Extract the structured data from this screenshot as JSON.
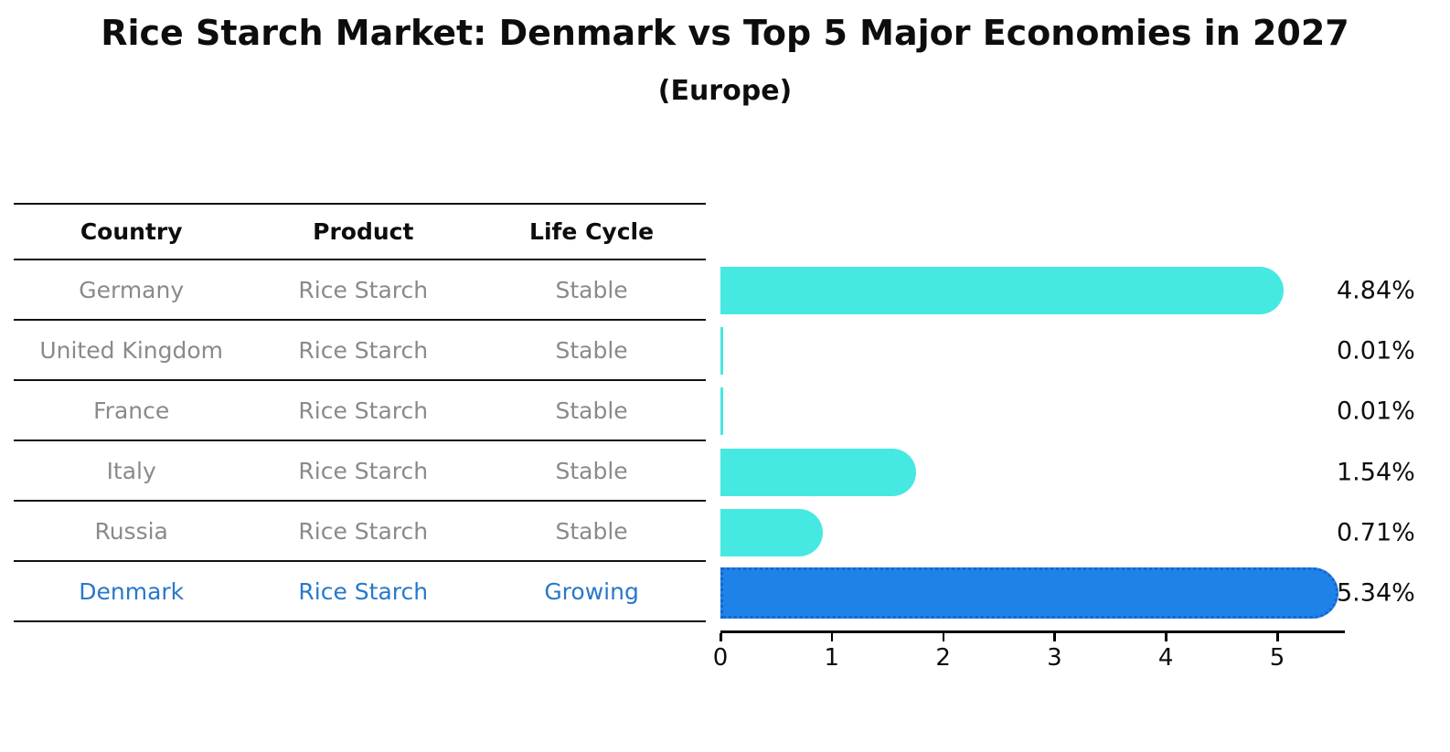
{
  "title": "Rice Starch Market: Denmark vs Top 5 Major Economies in 2027",
  "subtitle": "(Europe)",
  "table": {
    "headers": [
      "Country",
      "Product",
      "Life Cycle"
    ],
    "rows": [
      {
        "country": "Germany",
        "product": "Rice Starch",
        "life_cycle": "Stable",
        "highlight": false
      },
      {
        "country": "United Kingdom",
        "product": "Rice Starch",
        "life_cycle": "Stable",
        "highlight": false
      },
      {
        "country": "France",
        "product": "Rice Starch",
        "life_cycle": "Stable",
        "highlight": false
      },
      {
        "country": "Italy",
        "product": "Rice Starch",
        "life_cycle": "Stable",
        "highlight": false
      },
      {
        "country": "Russia",
        "product": "Rice Starch",
        "life_cycle": "Stable",
        "highlight": false
      },
      {
        "country": "Denmark",
        "product": "Rice Starch",
        "life_cycle": "Growing",
        "highlight": true
      }
    ]
  },
  "chart_data": {
    "type": "bar",
    "orientation": "horizontal",
    "title": "Rice Starch Market: Denmark vs Top 5 Major Economies in 2027",
    "subtitle": "(Europe)",
    "categories": [
      "Germany",
      "United Kingdom",
      "France",
      "Italy",
      "Russia",
      "Denmark"
    ],
    "values": [
      4.84,
      0.01,
      0.01,
      1.54,
      0.71,
      5.34
    ],
    "value_labels": [
      "4.84%",
      "0.01%",
      "0.01%",
      "1.54%",
      "0.71%",
      "5.34%"
    ],
    "highlight_index": 5,
    "x_ticks": [
      "0",
      "1",
      "2",
      "3",
      "4",
      "5"
    ],
    "xlim": [
      0,
      5.6
    ],
    "grid": false,
    "legend": "none"
  },
  "colors": {
    "bar": "#46e8e2",
    "highlight_bar": "#1e82e8",
    "highlight_bar_edge": "#1566cc",
    "row_text": "#8a8a8a",
    "highlight_text": "#2878cb",
    "heading_text": "#0d0d0d",
    "axis": "#000000"
  }
}
